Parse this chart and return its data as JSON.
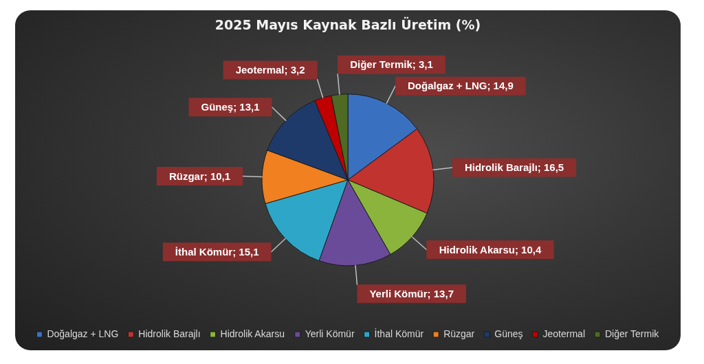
{
  "chart_data": {
    "type": "pie",
    "title": "2025 Mayıs Kaynak Bazlı Üretim (%)",
    "categories": [
      "Doğalgaz + LNG",
      "Hidrolik Barajlı",
      "Hidrolik Akarsu",
      "Yerli Kömür",
      "İthal Kömür",
      "Rüzgar",
      "Güneş",
      "Jeotermal",
      "Diğer Termik"
    ],
    "values": [
      14.9,
      16.5,
      10.4,
      13.7,
      15.1,
      10.1,
      13.1,
      3.2,
      3.1
    ],
    "colors": [
      "#3a70c0",
      "#c0332f",
      "#8ab43c",
      "#6a4b9a",
      "#2ea6c8",
      "#f08020",
      "#1e3a6a",
      "#c00000",
      "#4f6a22"
    ],
    "value_labels": [
      "Doğalgaz + LNG; 14,9",
      "Hidrolik Barajlı; 16,5",
      "Hidrolik Akarsu; 10,4",
      "Yerli Kömür; 13,7",
      "İthal Kömür; 15,1",
      "Rüzgar; 10,1",
      "Güneş; 13,1",
      "Jeotermal; 3,2",
      "Diğer Termik; 3,1"
    ],
    "legend": "bottom"
  }
}
